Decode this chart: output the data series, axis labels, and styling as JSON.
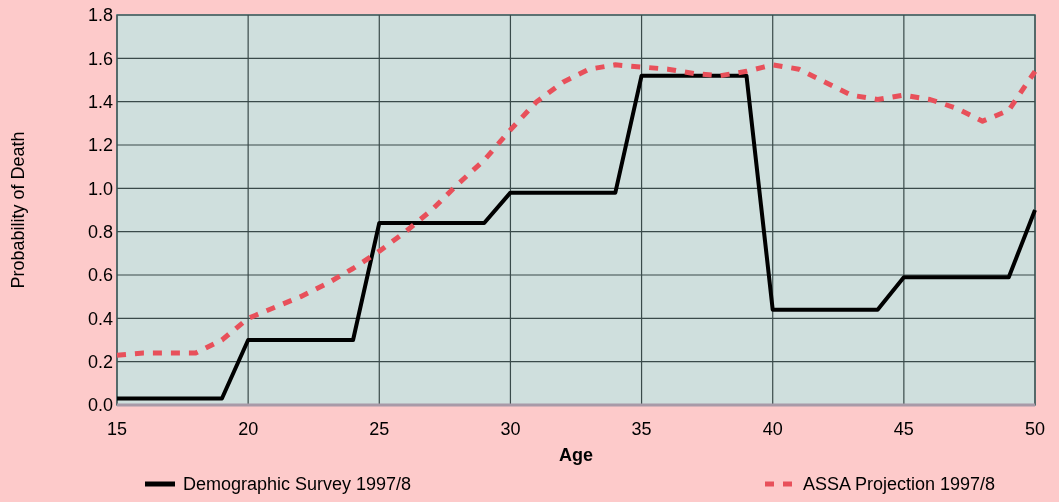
{
  "chart_data": {
    "type": "line",
    "xlabel": "Age",
    "ylabel": "Probability of Death",
    "xlim": [
      15,
      50
    ],
    "xticks": [
      15,
      20,
      25,
      30,
      35,
      40,
      45,
      50
    ],
    "ylim": [
      0,
      1.8
    ],
    "yticks": [
      {
        "value": 0,
        "label": "0.0"
      },
      0.2,
      0.4,
      0.6,
      0.8,
      {
        "value": 1,
        "label": "1.0"
      },
      1.2,
      1.4,
      1.6,
      1.8
    ],
    "grid": true,
    "legend": "bottom",
    "series": [
      {
        "name": "Demographic Survey 1997/8",
        "color": "#000000",
        "line_style": "solid",
        "x": [
          15,
          19,
          20,
          24,
          25,
          29,
          30,
          34,
          35,
          39,
          40,
          44,
          45,
          49,
          50
        ],
        "values": [
          0.03,
          0.03,
          0.3,
          0.3,
          0.84,
          0.84,
          0.98,
          0.98,
          1.52,
          1.52,
          0.44,
          0.44,
          0.59,
          0.59,
          0.9
        ]
      },
      {
        "name": "ASSA Projection 1997/8",
        "color": "#e8505a",
        "line_style": "dashed",
        "x": [
          15,
          16,
          17,
          18,
          19,
          20,
          21,
          22,
          23,
          24,
          25,
          26,
          27,
          28,
          29,
          30,
          31,
          32,
          33,
          34,
          35,
          36,
          37,
          38,
          39,
          40,
          41,
          42,
          43,
          44,
          45,
          46,
          47,
          48,
          49,
          50
        ],
        "values": [
          0.23,
          0.24,
          0.24,
          0.24,
          0.3,
          0.4,
          0.45,
          0.5,
          0.56,
          0.63,
          0.71,
          0.8,
          0.9,
          1.02,
          1.13,
          1.27,
          1.4,
          1.49,
          1.55,
          1.57,
          1.56,
          1.55,
          1.53,
          1.52,
          1.54,
          1.57,
          1.55,
          1.49,
          1.43,
          1.41,
          1.43,
          1.41,
          1.37,
          1.31,
          1.36,
          1.54
        ]
      }
    ]
  }
}
